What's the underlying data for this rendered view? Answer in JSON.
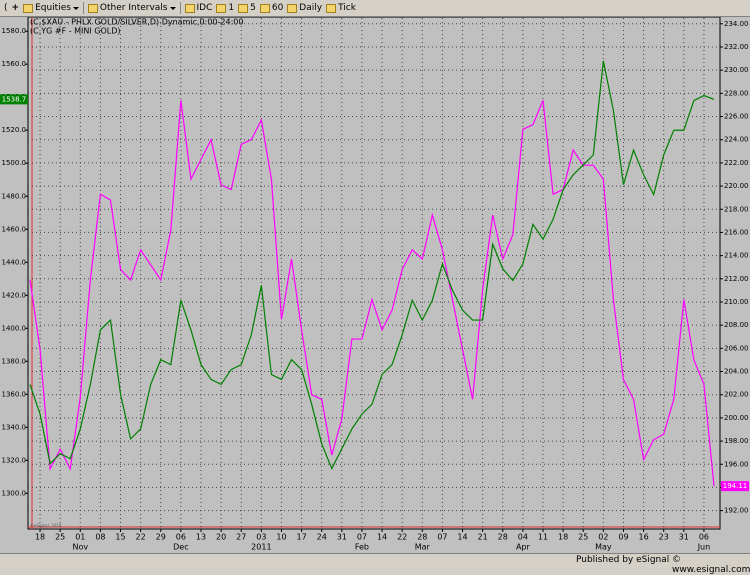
{
  "toolbar": [
    "Equities",
    "Other Intervals",
    "IDC",
    "1",
    "5",
    "60",
    "Daily",
    "Tick"
  ],
  "footer": {
    "publisher": "Published by eSignal",
    "site": "© www.esignal.com"
  },
  "chart_data": {
    "type": "line",
    "footnote": "©eSignal, 2010",
    "categories": [
      null,
      "18",
      null,
      "25",
      null,
      "01",
      null,
      "08",
      null,
      "15",
      null,
      "22",
      null,
      "29",
      null,
      "06",
      null,
      "13",
      null,
      "20",
      null,
      "27",
      null,
      "03",
      null,
      "10",
      null,
      "17",
      null,
      "24",
      null,
      "31",
      null,
      "07",
      null,
      "14",
      null,
      "22",
      null,
      "28",
      null,
      "07",
      null,
      "14",
      null,
      "21",
      null,
      "28",
      null,
      "04",
      null,
      "11",
      null,
      "18",
      null,
      "25",
      null,
      "02",
      null,
      "09",
      null,
      "16",
      null,
      "23",
      null,
      "31",
      null,
      "06",
      null
    ],
    "category_groups": [
      null,
      null,
      null,
      null,
      null,
      "Nov",
      null,
      null,
      null,
      null,
      null,
      null,
      null,
      null,
      null,
      "Dec",
      null,
      null,
      null,
      null,
      null,
      null,
      null,
      "2011",
      null,
      null,
      null,
      null,
      null,
      null,
      null,
      null,
      null,
      "Feb",
      null,
      null,
      null,
      null,
      null,
      "Mar",
      null,
      null,
      null,
      null,
      null,
      null,
      null,
      null,
      null,
      "Apr",
      null,
      null,
      null,
      null,
      null,
      null,
      null,
      "May",
      null,
      null,
      null,
      null,
      null,
      null,
      null,
      null,
      null,
      "Jun",
      null
    ],
    "series": [
      {
        "name": "(C,$XAU - PHLX GOLD/SILVER,D) Dynamic,0:00-24:00",
        "color": "#ff00ff",
        "axis": "y2",
        "last_value_label": "194.11",
        "values": [
          211.9,
          205.9,
          195.6,
          197.3,
          195.6,
          201.8,
          211.9,
          219.3,
          218.8,
          212.8,
          211.9,
          214.5,
          213.2,
          211.9,
          216.2,
          227.4,
          220.6,
          222.3,
          224.0,
          220.1,
          219.7,
          223.6,
          224.0,
          225.7,
          220.6,
          208.5,
          213.7,
          207.6,
          202.0,
          201.6,
          196.8,
          199.9,
          206.8,
          206.8,
          210.2,
          207.6,
          209.3,
          212.8,
          214.5,
          213.7,
          217.5,
          214.5,
          210.2,
          205.9,
          201.6,
          211.1,
          217.5,
          213.7,
          215.8,
          224.9,
          225.3,
          227.4,
          219.3,
          219.7,
          223.1,
          221.8,
          221.8,
          220.6,
          210.2,
          203.3,
          201.6,
          196.4,
          198.1,
          198.6,
          201.6,
          210.2,
          205.0,
          202.9,
          194.11
        ]
      },
      {
        "name": "(C,YG #F - MINI GOLD)",
        "color": "#008000",
        "last_value_label": "1538.7",
        "values": [
          1366,
          1348,
          1318,
          1324,
          1321,
          1339,
          1366,
          1399,
          1405,
          1360,
          1333,
          1339,
          1366,
          1381,
          1378,
          1417,
          1399,
          1378,
          1369,
          1366,
          1375,
          1378,
          1396,
          1426,
          1372,
          1369,
          1381,
          1375,
          1354,
          1330,
          1315,
          1327,
          1339,
          1348,
          1354,
          1372,
          1378,
          1396,
          1417,
          1405,
          1417,
          1439,
          1423,
          1411,
          1405,
          1405,
          1451,
          1436,
          1429,
          1439,
          1463,
          1454,
          1466,
          1484,
          1493,
          1499,
          1505,
          1562,
          1532,
          1487,
          1508,
          1493,
          1481,
          1505,
          1520,
          1520,
          1538,
          1541,
          1538.7
        ]
      }
    ],
    "ylim": [
      1279,
      1588
    ],
    "yticks": [
      {
        "value": 1300,
        "label": "1300.0"
      },
      {
        "value": 1320,
        "label": "1320.0"
      },
      {
        "value": 1340,
        "label": "1340.0"
      },
      {
        "value": 1360,
        "label": "1360.0"
      },
      {
        "value": 1380,
        "label": "1380.0"
      },
      {
        "value": 1400,
        "label": "1400.0"
      },
      {
        "value": 1420,
        "label": "1420.0"
      },
      {
        "value": 1440,
        "label": "1440.0"
      },
      {
        "value": 1460,
        "label": "1460.0"
      },
      {
        "value": 1480,
        "label": "1480.0"
      },
      {
        "value": 1500,
        "label": "1500.0"
      },
      {
        "value": 1520,
        "label": "1520.0"
      },
      {
        "value": 1540,
        "label": "1540.0"
      },
      {
        "value": 1560,
        "label": "1560.0"
      },
      {
        "value": 1580,
        "label": "1580.0"
      }
    ],
    "y2lim": [
      190.5,
      234.5
    ],
    "y2ticks": [
      {
        "value": 192,
        "label": "192.00"
      },
      {
        "value": 194,
        "label": "194.00"
      },
      {
        "value": 196,
        "label": "196.00"
      },
      {
        "value": 198,
        "label": "198.00"
      },
      {
        "value": 200,
        "label": "200.00"
      },
      {
        "value": 202,
        "label": "202.00"
      },
      {
        "value": 204,
        "label": "204.00"
      },
      {
        "value": 206,
        "label": "206.00"
      },
      {
        "value": 208,
        "label": "208.00"
      },
      {
        "value": 210,
        "label": "210.00"
      },
      {
        "value": 212,
        "label": "212.00"
      },
      {
        "value": 214,
        "label": "214.00"
      },
      {
        "value": 216,
        "label": "216.00"
      },
      {
        "value": 218,
        "label": "218.00"
      },
      {
        "value": 220,
        "label": "220.00"
      },
      {
        "value": 222,
        "label": "222.00"
      },
      {
        "value": 224,
        "label": "224.00"
      },
      {
        "value": 226,
        "label": "226.00"
      },
      {
        "value": 228,
        "label": "228.00"
      },
      {
        "value": 230,
        "label": "230.00"
      },
      {
        "value": 232,
        "label": "232.00"
      },
      {
        "value": 234,
        "label": "234.00"
      }
    ],
    "grid": true
  }
}
